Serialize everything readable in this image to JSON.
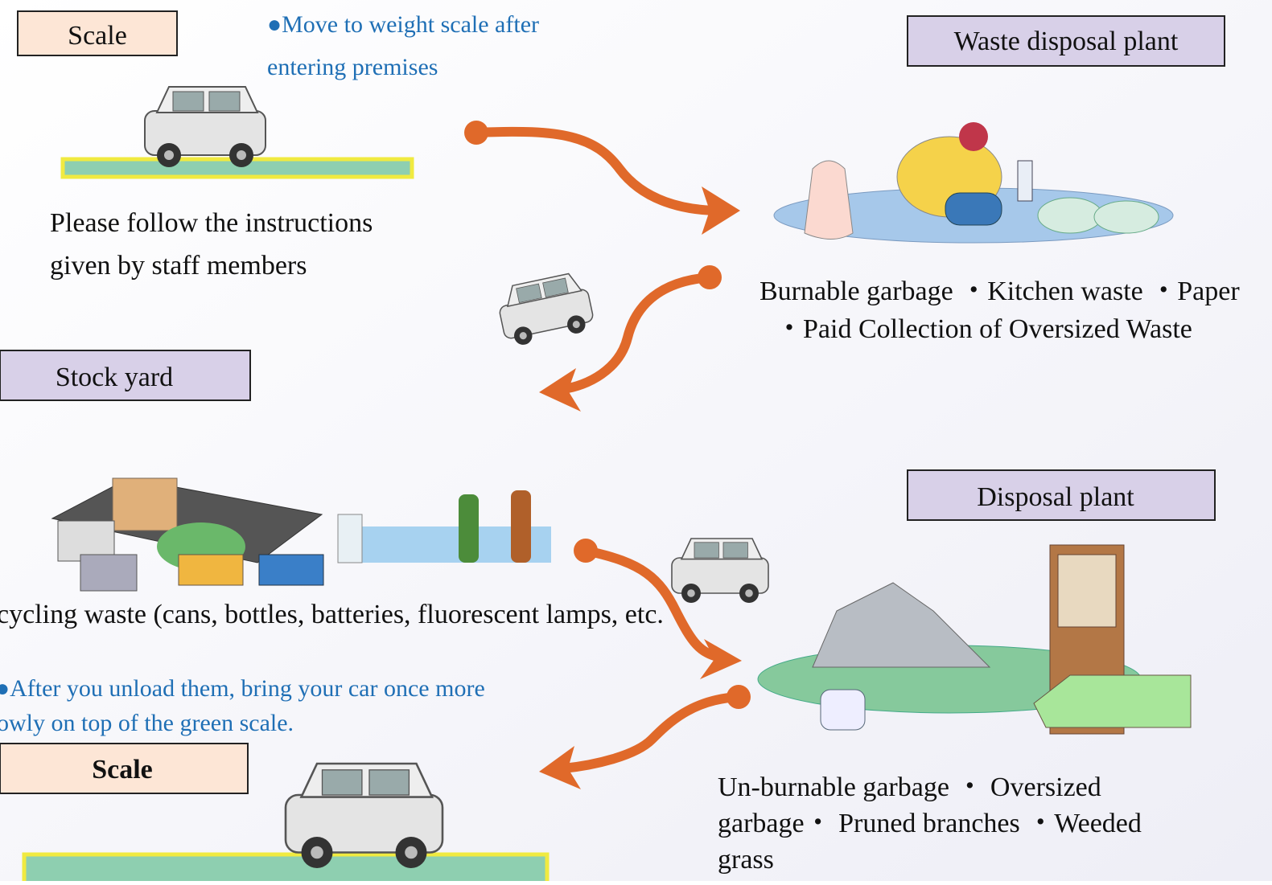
{
  "boxes": {
    "scale_top": "Scale",
    "waste_disposal_plant": "Waste disposal plant",
    "stock_yard": "Stock yard",
    "disposal_plant": "Disposal plant",
    "scale_bottom": "Scale"
  },
  "notes": {
    "move_to_scale": [
      "●Move to weight scale after",
      "entering premises"
    ],
    "follow_instructions": [
      "Please follow the instructions",
      "given by staff members"
    ],
    "burnable": [
      "Burnable garbage ・Kitchen waste ・Paper",
      "・Paid Collection of Oversized Waste"
    ],
    "recycling": "cycling waste (cans, bottles, batteries, fluorescent lamps, etc.",
    "after_unload": [
      "●After you unload them, bring your car once more",
      "owly on top of the green scale."
    ],
    "unburnable": [
      "Un-burnable garbage ・ Oversized",
      "garbage・ Pruned branches ・Weeded",
      "grass"
    ]
  }
}
